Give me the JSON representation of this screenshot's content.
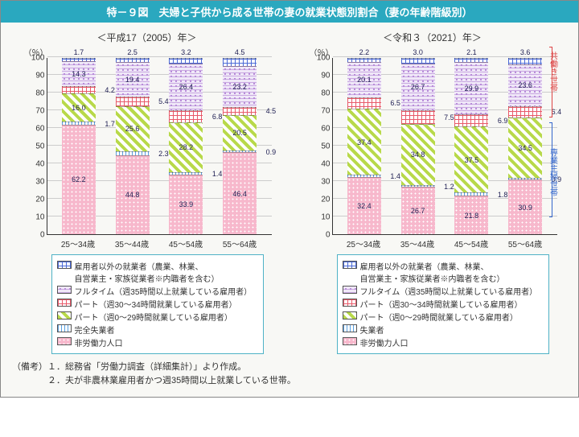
{
  "title": "特－９図　夫婦と子供から成る世帯の妻の就業状態別割合（妻の年齢階級別）",
  "panels": [
    {
      "subtitle": "＜平成17（2005）年＞",
      "categories": [
        "25～34歳",
        "35～44歳",
        "45～54歳",
        "55～64歳"
      ],
      "series_order": [
        "nolabor",
        "unemp",
        "pt0",
        "pt30",
        "full",
        "other"
      ],
      "data": {
        "25～34歳": {
          "nolabor": 62.2,
          "unemp": 1.7,
          "pt0": 16.0,
          "pt30": 4.2,
          "full": 14.3,
          "other": 1.7
        },
        "35～44歳": {
          "nolabor": 44.8,
          "unemp": 2.3,
          "pt0": 25.6,
          "pt30": 5.4,
          "full": 19.4,
          "other": 2.5
        },
        "45～54歳": {
          "nolabor": 33.9,
          "unemp": 1.4,
          "pt0": 28.2,
          "pt30": 6.8,
          "full": 26.4,
          "other": 3.2
        },
        "55～64歳": {
          "nolabor": 46.4,
          "unemp": 0.9,
          "pt0": 20.5,
          "pt30": 4.5,
          "full": 23.2,
          "other": 4.5
        }
      },
      "legend": [
        {
          "key": "other",
          "label": "雇用者以外の就業者（農業、林業、\n自営業主・家族従業者※内職者を含む）"
        },
        {
          "key": "full",
          "label": "フルタイム（週35時間以上就業している雇用者）"
        },
        {
          "key": "pt30",
          "label": "パート（週30～34時間就業している雇用者）"
        },
        {
          "key": "pt0",
          "label": "パート（週0～29時間就業している雇用者）"
        },
        {
          "key": "unemp",
          "label": "完全失業者"
        },
        {
          "key": "nolabor",
          "label": "非労働力人口"
        }
      ]
    },
    {
      "subtitle": "＜令和３（2021）年＞",
      "categories": [
        "25～34歳",
        "35～44歳",
        "45～54歳",
        "55～64歳"
      ],
      "series_order": [
        "nolabor",
        "unemp",
        "pt0",
        "pt30",
        "full",
        "other"
      ],
      "data": {
        "25～34歳": {
          "nolabor": 32.4,
          "unemp": 1.4,
          "pt0": 37.4,
          "pt30": 6.5,
          "full": 20.1,
          "other": 2.2
        },
        "35～44歳": {
          "nolabor": 26.7,
          "unemp": 1.2,
          "pt0": 34.8,
          "pt30": 7.5,
          "full": 26.7,
          "other": 3.0
        },
        "45～54歳": {
          "nolabor": 21.8,
          "unemp": 1.8,
          "pt0": 37.5,
          "pt30": 6.9,
          "full": 29.9,
          "other": 2.1
        },
        "55～64歳": {
          "nolabor": 30.9,
          "unemp": 0.9,
          "pt0": 34.5,
          "pt30": 6.4,
          "full": 23.6,
          "other": 3.6
        }
      },
      "legend": [
        {
          "key": "other",
          "label": "雇用者以外の就業者（農業、林業、\n自営業主・家族従業者※内職者を含む）"
        },
        {
          "key": "full",
          "label": "フルタイム（週35時間以上就業している雇用者）"
        },
        {
          "key": "pt30",
          "label": "パート（週30～34時間就業している雇用者）"
        },
        {
          "key": "pt0",
          "label": "パート（週0～29時間就業している雇用者）"
        },
        {
          "key": "unemp",
          "label": "失業者"
        },
        {
          "key": "nolabor",
          "label": "非労働力人口"
        }
      ],
      "side_labels": {
        "red": "共働き世帯",
        "blue": "専業主婦世帯"
      }
    }
  ],
  "ylabel": "（％）",
  "yticks": [
    0,
    10,
    20,
    30,
    40,
    50,
    60,
    70,
    80,
    90,
    100
  ],
  "fill_class": {
    "other": "f-other",
    "full": "f-full",
    "pt30": "f-pt30",
    "pt0": "f-pt0",
    "unemp": "f-unemp",
    "nolabor": "f-nolabor"
  },
  "notes": "（備考）１．総務省「労働力調査（詳細集計）」より作成。\n　　　　２．夫が非農林業雇用者かつ週35時間以上就業している世帯。",
  "small_segments": [
    "other",
    "unemp",
    "pt30"
  ]
}
